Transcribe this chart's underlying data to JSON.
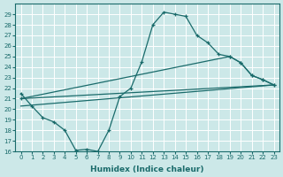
{
  "xlabel": "Humidex (Indice chaleur)",
  "ylabel": "",
  "background_color": "#cce8e8",
  "line_color": "#1a6b6b",
  "xlim": [
    -0.5,
    23.5
  ],
  "ylim": [
    16,
    30
  ],
  "yticks": [
    16,
    17,
    18,
    19,
    20,
    21,
    22,
    23,
    24,
    25,
    26,
    27,
    28,
    29
  ],
  "xticks": [
    0,
    1,
    2,
    3,
    4,
    5,
    6,
    7,
    8,
    9,
    10,
    11,
    12,
    13,
    14,
    15,
    16,
    17,
    18,
    19,
    20,
    21,
    22,
    23
  ],
  "series": [
    {
      "x": [
        0,
        1,
        2,
        3,
        4,
        5,
        6,
        7,
        8,
        9,
        10,
        11,
        12,
        13,
        14,
        15,
        16,
        17,
        18,
        19,
        20,
        21,
        22,
        23
      ],
      "y": [
        21.5,
        20.3,
        19.2,
        18.8,
        18.0,
        16.1,
        16.2,
        16.0,
        18.0,
        21.2,
        22.0,
        24.5,
        28.0,
        29.2,
        29.0,
        28.8,
        27.0,
        26.3,
        25.2,
        25.0,
        24.4,
        23.2,
        22.8,
        22.3
      ]
    },
    {
      "x": [
        0,
        19,
        20,
        21,
        22,
        23
      ],
      "y": [
        21.0,
        25.0,
        24.4,
        23.2,
        22.8,
        22.3
      ]
    },
    {
      "x": [
        0,
        23
      ],
      "y": [
        20.3,
        22.3
      ]
    }
  ]
}
